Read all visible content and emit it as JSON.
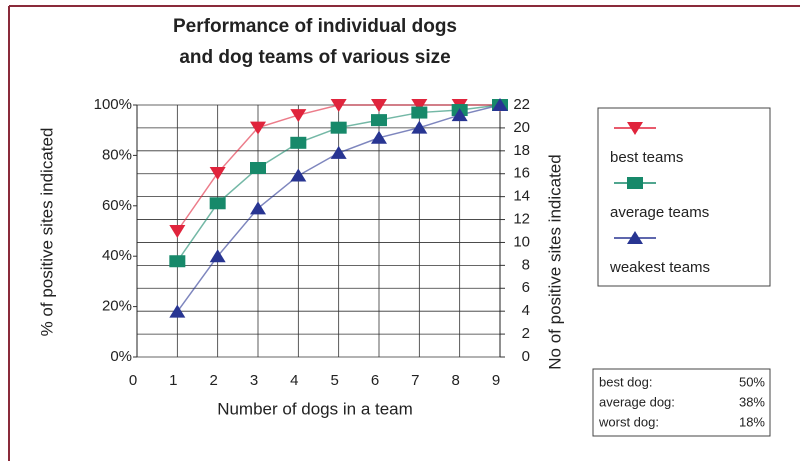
{
  "chart_data": {
    "type": "line",
    "title": [
      "Performance of individual dogs",
      "and dog teams of various size"
    ],
    "x_label": "Number of dogs in a team",
    "y_label": "% of positive sites indicated",
    "y2_label": "No of positive sites indicated",
    "x": [
      1,
      2,
      3,
      4,
      5,
      6,
      7,
      8,
      9
    ],
    "series": [
      {
        "name": "best teams",
        "color": "#e0243c",
        "marker": "triangle-down",
        "values": [
          50,
          73,
          91,
          96,
          100,
          100,
          100,
          100,
          100
        ]
      },
      {
        "name": "average teams",
        "color": "#17896a",
        "marker": "square",
        "values": [
          38,
          61,
          75,
          85,
          91,
          94,
          97,
          98,
          100
        ]
      },
      {
        "name": "weakest teams",
        "color": "#283592",
        "marker": "triangle-up",
        "values": [
          18,
          40,
          59,
          72,
          81,
          87,
          91,
          96,
          100
        ]
      }
    ],
    "xlim": [
      0,
      9
    ],
    "xticks": [
      0,
      1,
      2,
      3,
      4,
      5,
      6,
      7,
      8,
      9
    ],
    "ylim": [
      0,
      100
    ],
    "yticks": [
      {
        "value": 0,
        "label": "0%"
      },
      {
        "value": 20,
        "label": "20%"
      },
      {
        "value": 40,
        "label": "40%"
      },
      {
        "value": 60,
        "label": "60%"
      },
      {
        "value": 80,
        "label": "80%"
      },
      {
        "value": 100,
        "label": "100%"
      }
    ],
    "y2lim": [
      0,
      22
    ],
    "y2ticks": [
      0,
      2,
      4,
      6,
      8,
      10,
      12,
      14,
      16,
      18,
      20,
      22
    ],
    "grid": true,
    "legend": "right",
    "info_box": [
      {
        "label": "best dog:",
        "text": "50%"
      },
      {
        "label": "average dog:",
        "text": "38%"
      },
      {
        "label": "worst dog:",
        "text": "18%"
      }
    ]
  }
}
